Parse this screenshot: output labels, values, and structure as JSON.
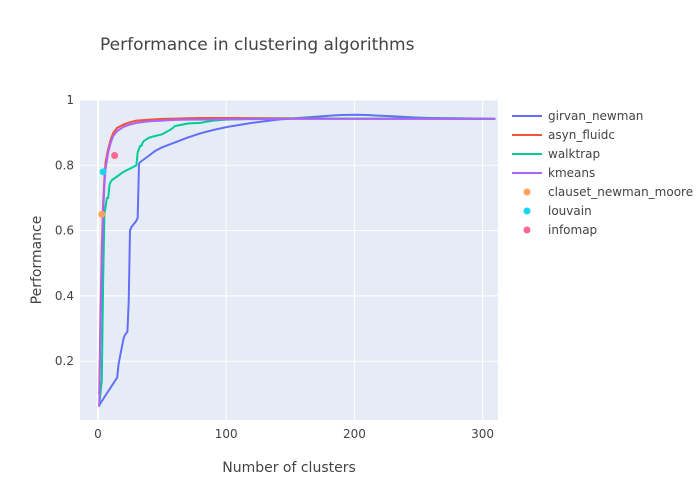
{
  "chart_data": {
    "type": "line",
    "title": "Performance in clustering algorithms",
    "xlabel": "Number of clusters",
    "ylabel": "Performance",
    "xlim": [
      -14,
      312
    ],
    "ylim": [
      0.02,
      1.0
    ],
    "xticks": [
      0,
      100,
      200,
      300
    ],
    "yticks": [
      0.2,
      0.4,
      0.6,
      0.8,
      1
    ],
    "ytick_labels": [
      "0.2",
      "0.4",
      "0.6",
      "0.8",
      "1"
    ],
    "xtick_labels": [
      "0",
      "100",
      "200",
      "300"
    ],
    "grid": true,
    "legend_position": "right",
    "series": [
      {
        "name": "girvan_newman",
        "mode": "line",
        "color": "#636efa",
        "x": [
          1,
          5,
          10,
          15,
          16,
          18,
          20,
          21,
          23,
          24,
          25,
          26,
          30,
          31,
          32,
          33,
          40,
          45,
          50,
          60,
          70,
          80,
          90,
          100,
          120,
          140,
          150,
          160,
          170,
          180,
          190,
          200,
          210,
          220,
          230,
          240,
          250,
          260,
          280,
          300,
          310
        ],
        "y": [
          0.065,
          0.09,
          0.12,
          0.15,
          0.19,
          0.23,
          0.27,
          0.28,
          0.29,
          0.38,
          0.6,
          0.61,
          0.63,
          0.64,
          0.805,
          0.81,
          0.83,
          0.845,
          0.855,
          0.87,
          0.885,
          0.898,
          0.908,
          0.917,
          0.93,
          0.94,
          0.943,
          0.946,
          0.949,
          0.952,
          0.954,
          0.955,
          0.954,
          0.952,
          0.95,
          0.948,
          0.946,
          0.945,
          0.944,
          0.943,
          0.942
        ]
      },
      {
        "name": "asyn_fluidc",
        "mode": "line",
        "color": "#ef553b",
        "x": [
          1,
          2,
          3,
          4,
          5,
          6,
          8,
          10,
          12,
          15,
          20,
          25,
          30,
          40,
          50,
          60,
          70,
          80,
          100,
          150,
          200,
          250,
          300,
          310
        ],
        "y": [
          0.1,
          0.35,
          0.55,
          0.68,
          0.76,
          0.81,
          0.85,
          0.88,
          0.9,
          0.915,
          0.925,
          0.932,
          0.937,
          0.94,
          0.942,
          0.943,
          0.944,
          0.945,
          0.945,
          0.944,
          0.943,
          0.943,
          0.942,
          0.942
        ]
      },
      {
        "name": "walktrap",
        "mode": "line",
        "color": "#00cc96",
        "x": [
          1,
          3,
          4,
          5,
          7,
          8,
          9,
          10,
          11,
          20,
          30,
          31,
          32,
          33,
          34,
          35,
          36,
          38,
          40,
          45,
          50,
          57,
          60,
          70,
          80,
          85,
          90,
          100,
          120,
          150,
          200,
          250,
          300,
          310
        ],
        "y": [
          0.065,
          0.14,
          0.44,
          0.65,
          0.7,
          0.7,
          0.74,
          0.75,
          0.755,
          0.78,
          0.8,
          0.84,
          0.85,
          0.86,
          0.86,
          0.87,
          0.875,
          0.88,
          0.885,
          0.89,
          0.895,
          0.91,
          0.92,
          0.928,
          0.93,
          0.934,
          0.937,
          0.94,
          0.942,
          0.943,
          0.943,
          0.943,
          0.942,
          0.942
        ]
      },
      {
        "name": "kmeans",
        "mode": "line",
        "color": "#ab63fa",
        "x": [
          1,
          2,
          3,
          4,
          5,
          6,
          8,
          10,
          12,
          15,
          20,
          25,
          30,
          40,
          50,
          60,
          70,
          80,
          100,
          150,
          200,
          250,
          300,
          310
        ],
        "y": [
          0.06,
          0.3,
          0.5,
          0.65,
          0.74,
          0.79,
          0.84,
          0.87,
          0.89,
          0.905,
          0.918,
          0.925,
          0.93,
          0.935,
          0.937,
          0.939,
          0.94,
          0.94,
          0.941,
          0.942,
          0.942,
          0.942,
          0.942,
          0.942
        ]
      },
      {
        "name": "clauset_newman_moore",
        "mode": "markers",
        "color": "#ffa15a",
        "x": [
          3
        ],
        "y": [
          0.65
        ]
      },
      {
        "name": "louvain",
        "mode": "markers",
        "color": "#19d3f3",
        "x": [
          4
        ],
        "y": [
          0.78
        ]
      },
      {
        "name": "infomap",
        "mode": "markers",
        "color": "#ff6692",
        "x": [
          13
        ],
        "y": [
          0.83
        ]
      }
    ]
  }
}
